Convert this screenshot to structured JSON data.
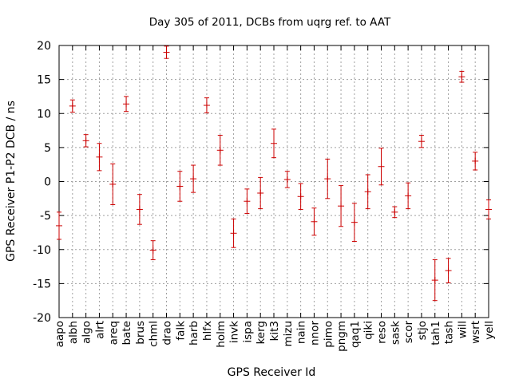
{
  "chart_data": {
    "type": "scatter",
    "title": "Day 305 of 2011, DCBs from uqrg ref. to AAT",
    "xlabel": "GPS Receiver Id",
    "ylabel": "GPS Receiver P1-P2 DCB / ns",
    "ylim": [
      -20,
      20
    ],
    "yticks": [
      -20,
      -15,
      -10,
      -5,
      0,
      5,
      10,
      15,
      20
    ],
    "grid": true,
    "error_bars": true,
    "color": "#cc0000",
    "categories": [
      "aapo",
      "albh",
      "algo",
      "alrt",
      "areq",
      "bate",
      "brus",
      "chml",
      "drao",
      "falk",
      "harb",
      "hlfx",
      "holm",
      "invk",
      "ispa",
      "kerg",
      "kit3",
      "mizu",
      "nain",
      "nnor",
      "pimo",
      "pngm",
      "qaq1",
      "qiki",
      "reso",
      "sask",
      "scor",
      "stjo",
      "tah1",
      "tash",
      "will",
      "wsrt",
      "yell"
    ],
    "series": [
      {
        "values": [
          -6.5,
          11.1,
          6.0,
          3.6,
          -0.4,
          11.4,
          -4.1,
          -10.1,
          19.0,
          -0.7,
          0.4,
          11.2,
          4.6,
          -7.6,
          -2.9,
          -1.7,
          5.6,
          0.3,
          -2.2,
          -5.9,
          0.4,
          -3.6,
          -6.0,
          -1.5,
          2.2,
          -4.5,
          -2.1,
          5.9,
          -14.5,
          -13.1,
          15.4,
          3.0,
          -4.1
        ],
        "errors": [
          2.0,
          0.9,
          0.9,
          2.0,
          3.0,
          1.1,
          2.2,
          1.4,
          0.9,
          2.2,
          2.0,
          1.1,
          2.2,
          2.1,
          1.8,
          2.3,
          2.1,
          1.2,
          1.9,
          2.0,
          2.9,
          3.0,
          2.8,
          2.5,
          2.7,
          0.8,
          1.9,
          0.9,
          3.0,
          1.8,
          0.8,
          1.3,
          1.4
        ]
      }
    ]
  }
}
